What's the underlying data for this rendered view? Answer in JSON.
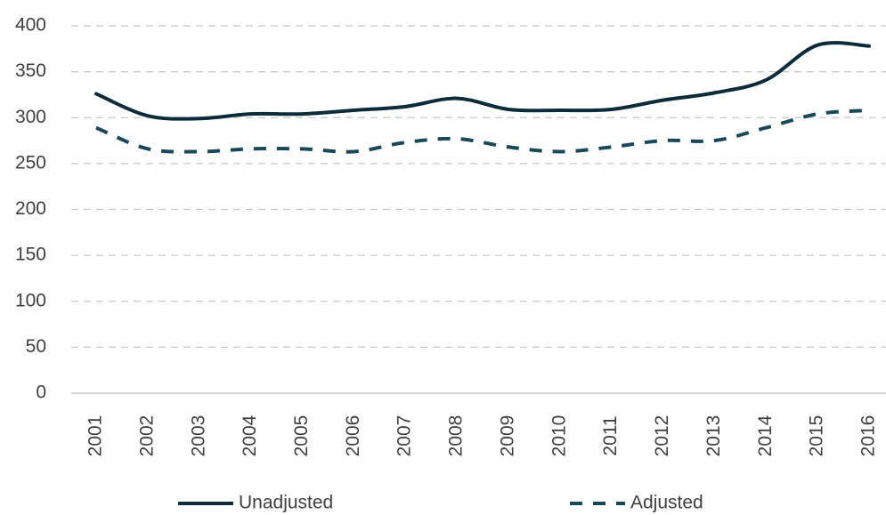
{
  "chart_data": {
    "type": "line",
    "categories": [
      "2001",
      "2002",
      "2003",
      "2004",
      "2005",
      "2006",
      "2007",
      "2008",
      "2009",
      "2010",
      "2011",
      "2012",
      "2013",
      "2014",
      "2015",
      "2016"
    ],
    "series": [
      {
        "name": "Unadjusted",
        "color": "#0d2b3a",
        "dash": false,
        "values": [
          326,
          302,
          299,
          304,
          304,
          308,
          312,
          321,
          309,
          308,
          309,
          319,
          327,
          341,
          379,
          378
        ]
      },
      {
        "name": "Adjusted",
        "color": "#1a4858",
        "dash": true,
        "values": [
          289,
          266,
          263,
          266,
          266,
          263,
          273,
          277,
          268,
          263,
          268,
          275,
          275,
          289,
          304,
          308
        ]
      }
    ],
    "ylim": [
      0,
      400
    ],
    "yticks": [
      0,
      50,
      100,
      150,
      200,
      250,
      300,
      350,
      400
    ],
    "grid": true,
    "legend": "bottom"
  }
}
